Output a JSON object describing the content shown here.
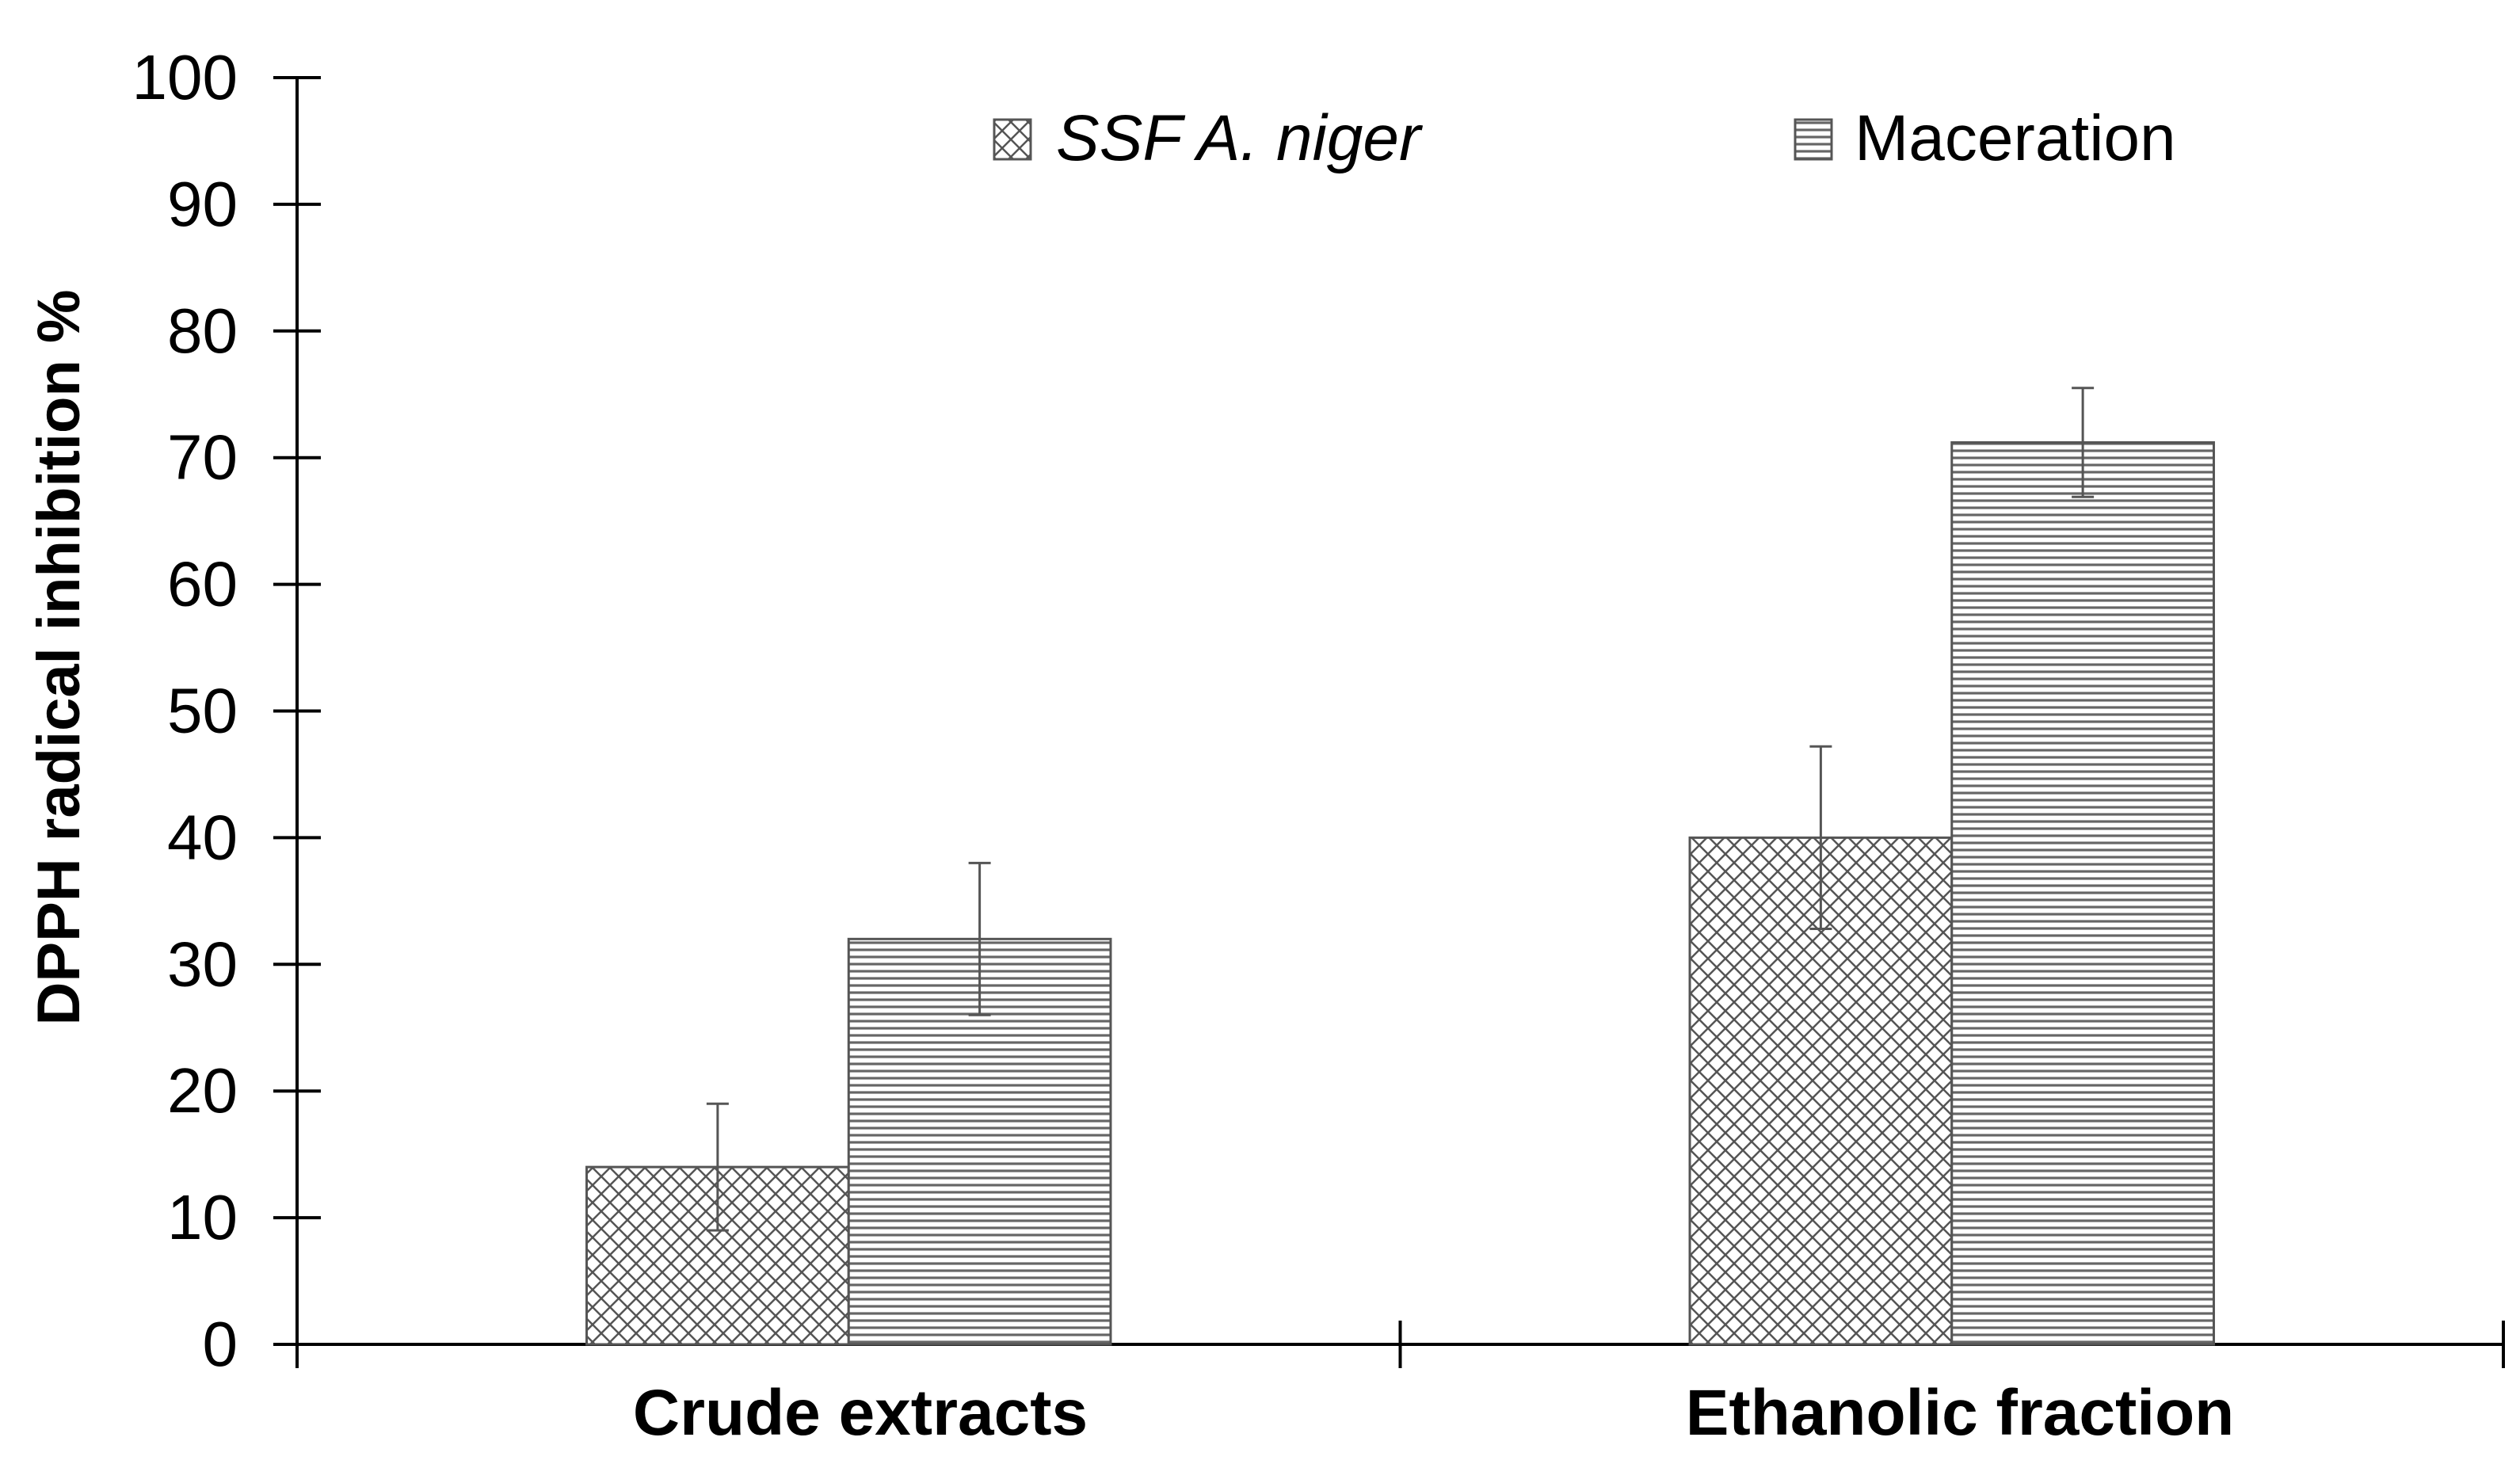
{
  "chart_data": {
    "type": "bar",
    "title": "",
    "xlabel": "",
    "ylabel": "DPPH radical inhibition %",
    "categories": [
      "Crude extracts",
      "Ethanolic fraction"
    ],
    "series": [
      {
        "name": "SSF A. niger",
        "values": [
          14,
          40
        ],
        "error": [
          5,
          7.2
        ],
        "pattern": "crosshatch"
      },
      {
        "name": "Maceration",
        "values": [
          32,
          71.2
        ],
        "error": [
          6,
          4.3
        ],
        "pattern": "horizontal-lines"
      }
    ],
    "ylim": [
      0,
      100
    ],
    "yticks": [
      "0",
      "10",
      "20",
      "30",
      "40",
      "50",
      "60",
      "70",
      "80",
      "90",
      "100"
    ],
    "grid": false,
    "legend_position": "top",
    "colors": {
      "axis": "#000000",
      "bar_border": "#555555",
      "error_bar": "#555555",
      "hatch_line": "#555555",
      "bar_fill": "#ffffff"
    }
  }
}
